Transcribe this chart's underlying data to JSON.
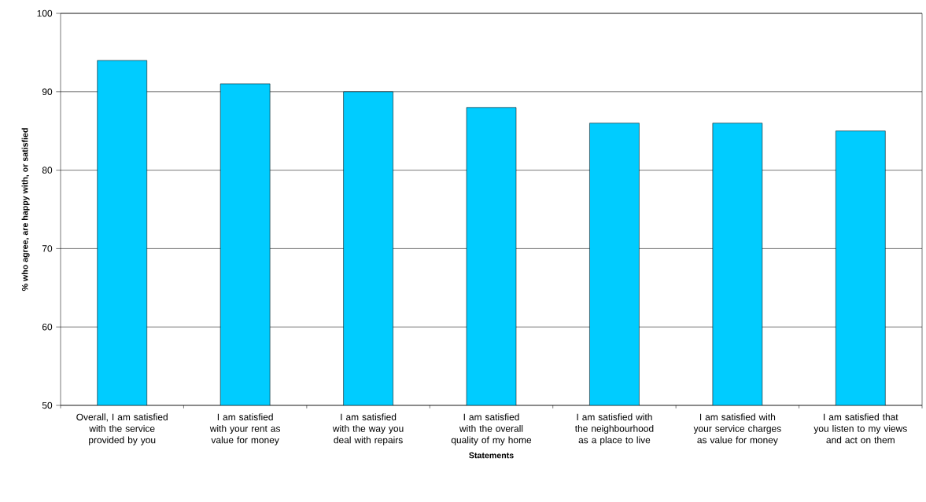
{
  "chart_data": {
    "type": "bar",
    "xlabel": "Statements",
    "ylabel": "% who agree, are happy with, or satisfied",
    "categories": [
      "Overall, I am satisfied with the service provided by you",
      "I am satisfied with your rent as value for money",
      "I am satisfied with the way you deal with repairs",
      "I am satisfied with the overall quality of my home",
      "I am satisfied with the neighbourhood as a place to live",
      "I am satisfied with your service charges as value for money",
      "I am satisfied that you listen to my views and act on them"
    ],
    "values": [
      94,
      91,
      90,
      88,
      86,
      86,
      85
    ],
    "color": "#00ccff",
    "ylim": [
      50,
      100
    ],
    "yticks": [
      50,
      60,
      70,
      80,
      90,
      100
    ],
    "grid": "y"
  }
}
